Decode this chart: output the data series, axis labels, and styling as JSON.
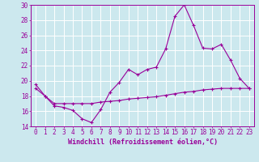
{
  "xlabel": "Windchill (Refroidissement éolien,°C)",
  "xlim": [
    -0.5,
    23.5
  ],
  "ylim": [
    14,
    30
  ],
  "yticks": [
    14,
    16,
    18,
    20,
    22,
    24,
    26,
    28,
    30
  ],
  "xticks": [
    0,
    1,
    2,
    3,
    4,
    5,
    6,
    7,
    8,
    9,
    10,
    11,
    12,
    13,
    14,
    15,
    16,
    17,
    18,
    19,
    20,
    21,
    22,
    23
  ],
  "background_color": "#cce8ee",
  "line_color": "#990099",
  "grid_color": "#ffffff",
  "line1_y": [
    19.5,
    18.0,
    16.7,
    16.5,
    16.1,
    15.0,
    14.5,
    16.2,
    18.5,
    19.8,
    21.5,
    20.8,
    21.5,
    21.8,
    24.2,
    28.5,
    30.0,
    27.3,
    24.3,
    24.2,
    24.8,
    22.7,
    20.3,
    19.0
  ],
  "line2_y": [
    19.0,
    18.0,
    17.0,
    17.0,
    17.0,
    17.0,
    17.0,
    17.2,
    17.3,
    17.4,
    17.6,
    17.7,
    17.8,
    17.9,
    18.1,
    18.3,
    18.5,
    18.6,
    18.8,
    18.9,
    19.0,
    19.0,
    19.0,
    19.0
  ],
  "tick_fontsize": 5.5,
  "xlabel_fontsize": 6.0
}
